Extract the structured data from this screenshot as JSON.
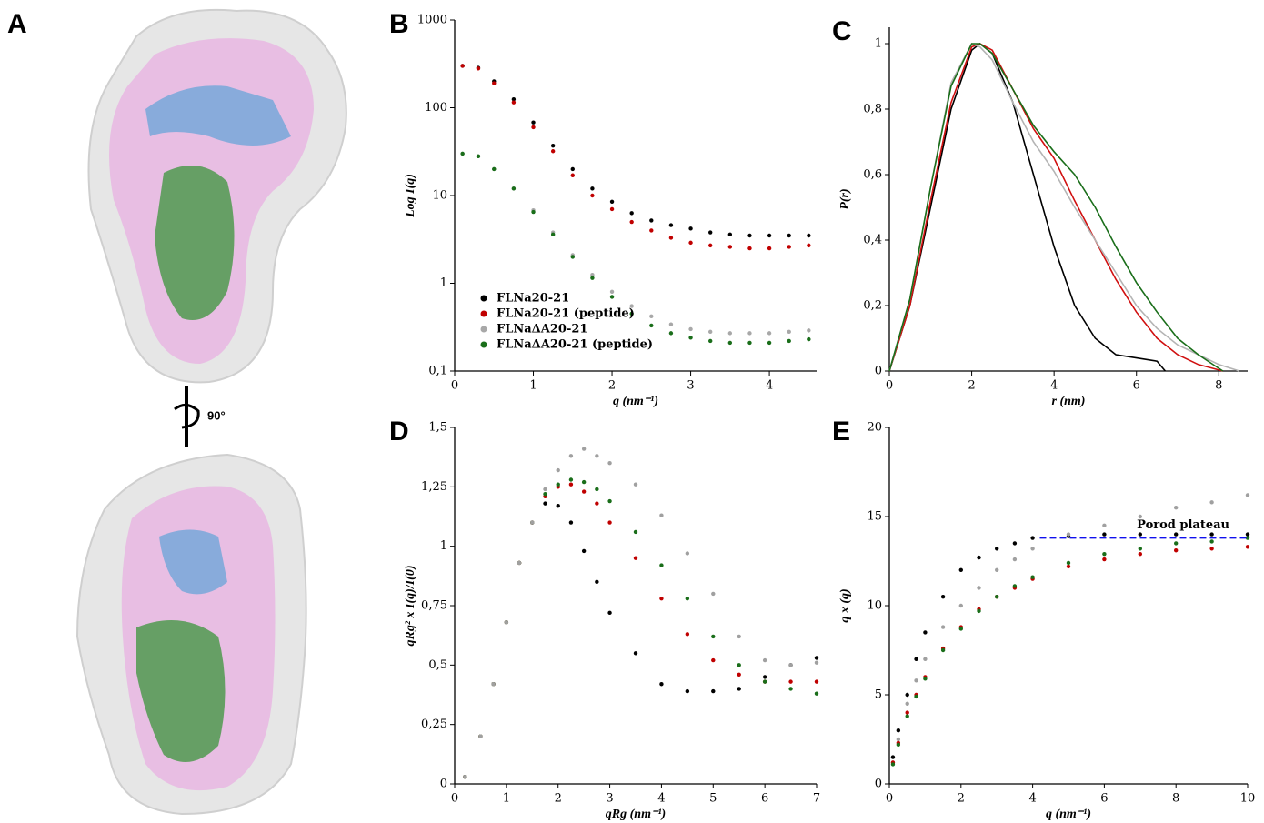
{
  "panel_a": {
    "label": "A",
    "rotation": "90°"
  },
  "chart_data": [
    {
      "type": "scatter",
      "panel": "B",
      "y_label": "Log I(q)",
      "x_label": "q (nm⁻¹)",
      "log_y": true,
      "legend": "lower left",
      "xlim": [
        0,
        4.6
      ],
      "xticks": [
        0,
        1,
        2,
        3,
        4
      ],
      "ylim": [
        0.1,
        1000
      ],
      "yticks": [
        {
          "value": 0.1,
          "label": "0,1"
        },
        1,
        10,
        100,
        1000
      ],
      "x": [
        0.1,
        0.3,
        0.5,
        0.75,
        1,
        1.25,
        1.5,
        1.75,
        2,
        2.25,
        2.5,
        2.75,
        3,
        3.25,
        3.5,
        3.75,
        4,
        4.25,
        4.5
      ],
      "series": [
        {
          "name": "FLNa20-21",
          "color": "#000000",
          "values": [
            300,
            285,
            200,
            125,
            68,
            37,
            20,
            12,
            8.5,
            6.3,
            5.2,
            4.6,
            4.2,
            3.8,
            3.6,
            3.5,
            3.5,
            3.5,
            3.5
          ]
        },
        {
          "name": "FLNa20-21 (peptide)",
          "color": "#c00000",
          "values": [
            300,
            280,
            190,
            115,
            60,
            32,
            17,
            10,
            7,
            5,
            4,
            3.3,
            2.9,
            2.7,
            2.6,
            2.5,
            2.5,
            2.6,
            2.7
          ]
        },
        {
          "name": "FLNaΔA20-21",
          "color": "#a8a8a8",
          "values": [
            30,
            28,
            20,
            12,
            6.8,
            3.8,
            2.1,
            1.25,
            0.8,
            0.55,
            0.42,
            0.34,
            0.3,
            0.28,
            0.27,
            0.27,
            0.27,
            0.28,
            0.29
          ]
        },
        {
          "name": "FLNaΔA20-21 (peptide)",
          "color": "#1a6e1a",
          "values": [
            30,
            28,
            20,
            12,
            6.5,
            3.6,
            2,
            1.15,
            0.7,
            0.45,
            0.33,
            0.27,
            0.24,
            0.22,
            0.21,
            0.21,
            0.21,
            0.22,
            0.23
          ]
        }
      ]
    },
    {
      "type": "line",
      "panel": "C",
      "y_label": "P(r)",
      "x_label": "r (nm)",
      "xlim": [
        0,
        8.7
      ],
      "xticks": [
        0,
        2,
        4,
        6,
        8
      ],
      "ylim": [
        0,
        1.05
      ],
      "yticks": [
        0,
        {
          "value": 0.2,
          "label": "0,2"
        },
        {
          "value": 0.4,
          "label": "0,4"
        },
        {
          "value": 0.6,
          "label": "0,6"
        },
        {
          "value": 0.8,
          "label": "0,8"
        },
        1
      ],
      "series": [
        {
          "color": "#000000",
          "x": [
            0,
            0.5,
            1,
            1.5,
            2,
            2.2,
            2.5,
            3,
            3.5,
            4,
            4.5,
            5,
            5.5,
            6,
            6.5,
            6.7
          ],
          "values": [
            0,
            0.2,
            0.5,
            0.8,
            0.98,
            1,
            0.97,
            0.82,
            0.6,
            0.38,
            0.2,
            0.1,
            0.05,
            0.04,
            0.03,
            0
          ]
        },
        {
          "color": "#d01010",
          "x": [
            0,
            0.5,
            1,
            1.5,
            2,
            2.2,
            2.5,
            3,
            3.5,
            4,
            4.5,
            5,
            5.5,
            6,
            6.5,
            7,
            7.5,
            8.1
          ],
          "values": [
            0,
            0.2,
            0.52,
            0.82,
            0.99,
            1,
            0.98,
            0.86,
            0.74,
            0.65,
            0.52,
            0.4,
            0.28,
            0.18,
            0.1,
            0.05,
            0.02,
            0
          ]
        },
        {
          "color": "#b4b4b4",
          "x": [
            0,
            0.5,
            1,
            1.5,
            2,
            2.2,
            2.5,
            3,
            3.5,
            4,
            4.5,
            5,
            5.5,
            6,
            6.5,
            7,
            7.5,
            8,
            8.5
          ],
          "values": [
            0,
            0.22,
            0.56,
            0.88,
            1,
            0.99,
            0.95,
            0.82,
            0.7,
            0.61,
            0.5,
            0.4,
            0.3,
            0.2,
            0.13,
            0.08,
            0.05,
            0.02,
            0
          ]
        },
        {
          "color": "#1a6e1a",
          "x": [
            0,
            0.5,
            1,
            1.5,
            2,
            2.2,
            2.5,
            3,
            3.5,
            4,
            4.5,
            5,
            5.5,
            6,
            6.5,
            7,
            7.5,
            8.1
          ],
          "values": [
            0,
            0.22,
            0.56,
            0.87,
            1,
            1,
            0.97,
            0.86,
            0.75,
            0.67,
            0.6,
            0.5,
            0.38,
            0.27,
            0.18,
            0.1,
            0.05,
            0
          ]
        }
      ]
    },
    {
      "type": "scatter",
      "panel": "D",
      "y_label": "qRg² x I(q)/I(0)",
      "x_label": "qRg (nm⁻¹)",
      "xlim": [
        0,
        7
      ],
      "xticks": [
        0,
        1,
        2,
        3,
        4,
        5,
        6,
        7
      ],
      "ylim": [
        0,
        1.5
      ],
      "yticks": [
        0,
        {
          "value": 0.25,
          "label": "0,25"
        },
        {
          "value": 0.5,
          "label": "0,5"
        },
        {
          "value": 0.75,
          "label": "0,75"
        },
        1,
        {
          "value": 1.25,
          "label": "1,25"
        },
        {
          "value": 1.5,
          "label": "1,5"
        }
      ],
      "x": [
        0.2,
        0.5,
        0.75,
        1,
        1.25,
        1.5,
        1.75,
        2,
        2.25,
        2.5,
        2.75,
        3,
        3.5,
        4,
        4.5,
        5,
        5.5,
        6,
        6.5,
        7
      ],
      "series": [
        {
          "color": "#000000",
          "values": [
            0.03,
            0.2,
            0.42,
            0.68,
            0.93,
            1.1,
            1.18,
            1.17,
            1.1,
            0.98,
            0.85,
            0.72,
            0.55,
            0.42,
            0.39,
            0.39,
            0.4,
            0.45,
            0.5,
            0.53
          ]
        },
        {
          "color": "#c00000",
          "values": [
            0.03,
            0.2,
            0.42,
            0.68,
            0.93,
            1.1,
            1.21,
            1.25,
            1.26,
            1.23,
            1.18,
            1.1,
            0.95,
            0.78,
            0.63,
            0.52,
            0.46,
            0.43,
            0.43,
            0.43
          ]
        },
        {
          "color": "#1a6e1a",
          "values": [
            0.03,
            0.2,
            0.42,
            0.68,
            0.93,
            1.1,
            1.22,
            1.26,
            1.28,
            1.27,
            1.24,
            1.19,
            1.06,
            0.92,
            0.78,
            0.62,
            0.5,
            0.43,
            0.4,
            0.38
          ]
        },
        {
          "color": "#a0a0a0",
          "values": [
            0.03,
            0.2,
            0.42,
            0.68,
            0.93,
            1.1,
            1.24,
            1.32,
            1.38,
            1.41,
            1.38,
            1.35,
            1.26,
            1.13,
            0.97,
            0.8,
            0.62,
            0.52,
            0.5,
            0.51
          ]
        }
      ]
    },
    {
      "type": "scatter",
      "panel": "E",
      "y_label": "q x (q)",
      "x_label": "q (nm⁻¹)",
      "xlim": [
        0,
        10
      ],
      "xticks": [
        0,
        2,
        4,
        6,
        8,
        10
      ],
      "ylim": [
        0,
        20
      ],
      "yticks": [
        0,
        5,
        10,
        15,
        20
      ],
      "x": [
        0.1,
        0.25,
        0.5,
        0.75,
        1,
        1.5,
        2,
        2.5,
        3,
        3.5,
        4,
        5,
        6,
        7,
        8,
        9,
        10
      ],
      "series": [
        {
          "color": "#000000",
          "values": [
            1.5,
            3,
            5,
            7,
            8.5,
            10.5,
            12,
            12.7,
            13.2,
            13.5,
            13.8,
            13.9,
            14,
            14,
            14,
            14,
            14
          ]
        },
        {
          "color": "#a0a0a0",
          "values": [
            1.2,
            2.5,
            4.5,
            5.8,
            7,
            8.8,
            10,
            11,
            12,
            12.6,
            13.2,
            14,
            14.5,
            15,
            15.5,
            15.8,
            16.2
          ]
        },
        {
          "color": "#c00000",
          "values": [
            1.2,
            2.3,
            4,
            5,
            6,
            7.6,
            8.8,
            9.8,
            10.5,
            11,
            11.5,
            12.2,
            12.6,
            12.9,
            13.1,
            13.2,
            13.3
          ]
        },
        {
          "color": "#1a6e1a",
          "values": [
            1.1,
            2.2,
            3.8,
            4.9,
            5.9,
            7.5,
            8.7,
            9.7,
            10.5,
            11.1,
            11.6,
            12.4,
            12.9,
            13.2,
            13.5,
            13.6,
            13.8
          ]
        }
      ],
      "annotation": {
        "text": "Porod plateau",
        "color": "#1010ee",
        "y": 13.8,
        "x": [
          4.2,
          10
        ]
      }
    }
  ]
}
